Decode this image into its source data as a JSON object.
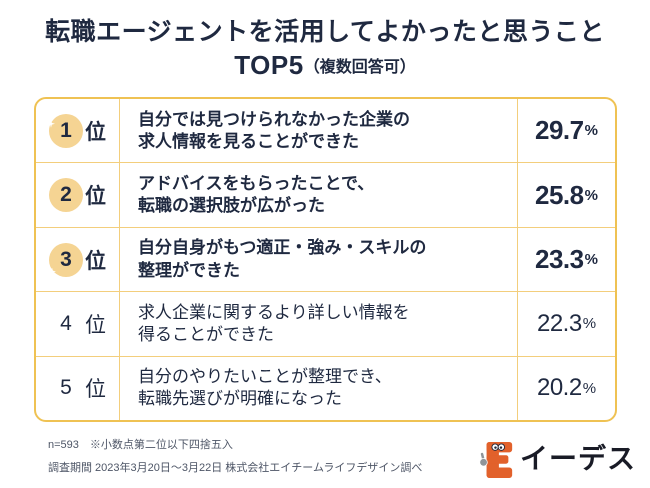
{
  "title": "転職エージェントを活用してよかったと思うこと",
  "subtitle": {
    "main": "TOP5",
    "note": "（複数回答可）"
  },
  "table": {
    "rows": [
      {
        "rank": "1",
        "suffix": "位",
        "line1": "自分では見つけられなかった企業の",
        "line2": "求人情報を見ることができた",
        "value": "29.7",
        "unit": "%",
        "highlight": true
      },
      {
        "rank": "2",
        "suffix": "位",
        "line1": "アドバイスをもらったことで、",
        "line2": "転職の選択肢が広がった",
        "value": "25.8",
        "unit": "%",
        "highlight": true
      },
      {
        "rank": "3",
        "suffix": "位",
        "line1": "自分自身がもつ適正・強み・スキルの",
        "line2": "整理ができた",
        "value": "23.3",
        "unit": "%",
        "highlight": true
      },
      {
        "rank": "4",
        "suffix": "位",
        "line1": "求人企業に関するより詳しい情報を",
        "line2": "得ることができた",
        "value": "22.3",
        "unit": "%",
        "highlight": false
      },
      {
        "rank": "5",
        "suffix": "位",
        "line1": "自分のやりたいことが整理でき、",
        "line2": "転職先選びが明確になった",
        "value": "20.2",
        "unit": "%",
        "highlight": false
      }
    ]
  },
  "footer": {
    "note1": "n=593　※小数点第二位以下四捨五入",
    "note2": "調査期間 2023年3月20日～3月22日 株式会社エイチームライフデザイン調べ"
  },
  "logo": {
    "text": "イーデス",
    "mascot": "e-mascot-icon"
  },
  "colors": {
    "navy_text": "#1F2940",
    "table_border": "#EFC253",
    "table_grid": "#F3CE7C",
    "rank_circle": "#F5D493",
    "footer_text": "#4D5566",
    "logo_orange": "#E2612B",
    "background": "#FFFFFF"
  },
  "chart_data": {
    "type": "table",
    "title": "転職エージェントを活用してよかったと思うこと TOP5（複数回答可）",
    "categories": [
      "自分では見つけられなかった企業の求人情報を見ることができた",
      "アドバイスをもらったことで、転職の選択肢が広がった",
      "自分自身がもつ適正・強み・スキルの整理ができた",
      "求人企業に関するより詳しい情報を得ることができた",
      "自分のやりたいことが整理でき、転職先選びが明確になった"
    ],
    "ranks": [
      "1位",
      "2位",
      "3位",
      "4位",
      "5位"
    ],
    "values": [
      29.7,
      25.8,
      23.3,
      22.3,
      20.2
    ],
    "unit": "%",
    "notes": [
      "n=593　※小数点第二位以下四捨五入",
      "調査期間 2023年3月20日～3月22日 株式会社エイチームライフデザイン調べ"
    ],
    "source_logo": "イーデス"
  }
}
